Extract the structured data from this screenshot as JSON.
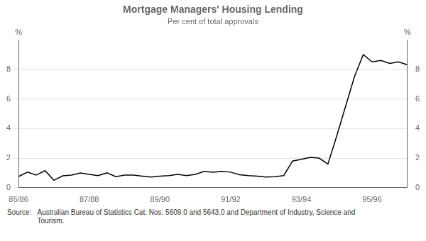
{
  "chart_data": {
    "type": "line",
    "title": "Mortgage Managers' Housing Lending",
    "subtitle": "Per cent of total approvals",
    "ylabel": "%",
    "y2label": "%",
    "annotations": [
      "Source:",
      "Australian Bureau of Statistics Cat. Nos. 5609.0 and 5643.0 and Department of Industry, Science and\nTourism."
    ],
    "x": [
      0,
      1,
      2,
      3,
      4,
      5,
      6,
      7,
      8,
      9,
      10,
      11,
      12,
      13,
      14,
      15,
      16,
      17,
      18,
      19,
      20,
      21,
      22,
      23,
      24,
      25,
      26,
      27,
      28,
      29,
      30,
      31,
      32,
      33,
      34,
      35,
      36,
      37,
      38,
      39,
      40,
      41,
      42,
      43,
      44
    ],
    "values": [
      0.75,
      1.05,
      0.85,
      1.15,
      0.5,
      0.8,
      0.85,
      1.0,
      0.9,
      0.82,
      1.0,
      0.75,
      0.85,
      0.85,
      0.78,
      0.72,
      0.78,
      0.82,
      0.9,
      0.82,
      0.9,
      1.1,
      1.05,
      1.1,
      1.05,
      0.88,
      0.82,
      0.78,
      0.72,
      0.75,
      0.82,
      1.8,
      1.92,
      2.05,
      2.0,
      1.6,
      3.5,
      5.5,
      7.5,
      9.0,
      8.5,
      8.6,
      8.4,
      8.5,
      8.3
    ],
    "color": "#000000",
    "xlim": [
      0,
      44
    ],
    "xticks": [
      {
        "value": 0,
        "label": "85/86"
      },
      {
        "value": 8,
        "label": "87/88"
      },
      {
        "value": 16,
        "label": "89/90"
      },
      {
        "value": 24,
        "label": "91/92"
      },
      {
        "value": 32,
        "label": "93/94"
      },
      {
        "value": 40,
        "label": "95/96"
      }
    ],
    "ylim": [
      0,
      10
    ],
    "yticks": [
      0,
      2,
      4,
      6,
      8
    ],
    "y2lim": [
      0,
      10
    ],
    "y2ticks": [
      0,
      2,
      4,
      6,
      8
    ],
    "grid": "y"
  }
}
